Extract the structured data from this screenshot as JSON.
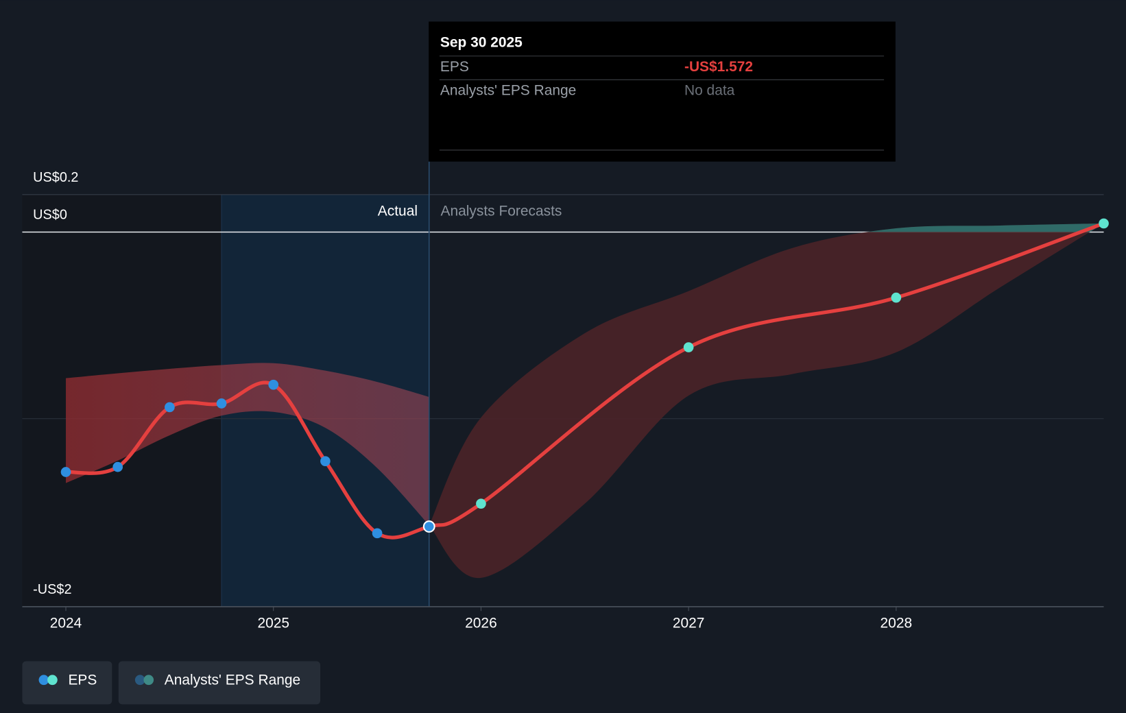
{
  "chart_data": {
    "type": "line",
    "xlim": [
      2023.79,
      2029.0
    ],
    "xticks": [
      2024,
      2025,
      2026,
      2027,
      2028
    ],
    "ylim": [
      -2,
      0.2
    ],
    "yticks": [
      {
        "value": 0.2,
        "label": "US$0.2"
      },
      {
        "value": 0,
        "label": "US$0"
      },
      {
        "value": -2,
        "label": "-US$2"
      }
    ],
    "actual_label": "Actual",
    "forecast_label": "Analysts Forecasts",
    "divider_x": 2025.75,
    "highlight": [
      2024.75,
      2025.75
    ],
    "series": [
      {
        "name": "EPS",
        "color": "#e5403f",
        "x": [
          2024,
          2024.25,
          2024.5,
          2024.75,
          2025,
          2025.25,
          2025.5,
          2025.75,
          2026,
          2027,
          2028,
          2029.0
        ],
        "values": [
          -1.281,
          -1.254,
          -0.935,
          -0.915,
          -0.815,
          -1.223,
          -1.608,
          -1.572,
          -1.45,
          -0.615,
          -0.35,
          0.046
        ]
      }
    ],
    "range_name": "Analysts' EPS Range",
    "ranges": [
      {
        "color": "#b8363f",
        "x": [
          2024,
          2024.25,
          2024.5,
          2024.75,
          2025,
          2025.25,
          2025.5,
          2025.75
        ],
        "high": [
          -0.78,
          -0.754,
          -0.73,
          -0.71,
          -0.7,
          -0.74,
          -0.8,
          -0.88
        ],
        "low": [
          -1.34,
          -1.22,
          -1.085,
          -0.98,
          -0.96,
          -1.045,
          -1.26,
          -1.565
        ]
      },
      {
        "color": "#4a2328",
        "x": [
          2025.75,
          2026,
          2026.5,
          2027,
          2027.5,
          2028,
          2028.5,
          2029.0
        ],
        "high": [
          -1.565,
          -0.99,
          -0.54,
          -0.315,
          -0.085,
          0.02,
          0.035,
          0.046
        ],
        "low": [
          -1.565,
          -1.846,
          -1.45,
          -0.873,
          -0.758,
          -0.642,
          -0.296,
          0.046
        ]
      }
    ],
    "tooltip": {
      "date": "Sep 30 2025",
      "rows": [
        {
          "label": "EPS",
          "value": -1.572,
          "value_label": "-US$1.572"
        },
        {
          "label": "Analysts' EPS Range",
          "text": "No data"
        }
      ]
    }
  }
}
